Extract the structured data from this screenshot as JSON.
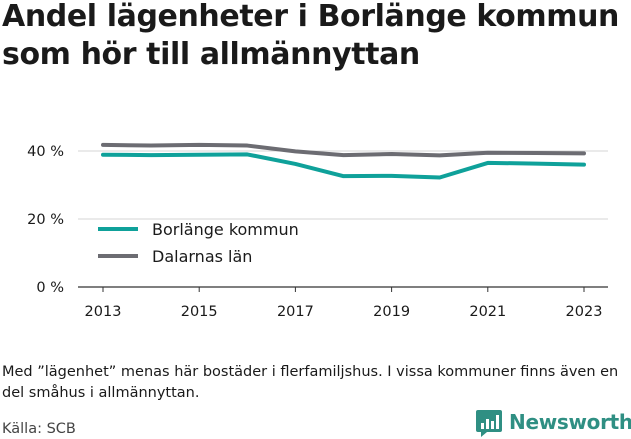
{
  "chart_data": {
    "type": "line",
    "title": "Andel lägenheter i Borlänge kommun som hör till allmännyttan",
    "x": [
      2013,
      2014,
      2015,
      2016,
      2017,
      2018,
      2019,
      2020,
      2021,
      2022,
      2023
    ],
    "x_ticks": [
      "2013",
      "2015",
      "2017",
      "2019",
      "2021",
      "2023"
    ],
    "y_ticks": [
      {
        "value": 0,
        "label": "0 %"
      },
      {
        "value": 20,
        "label": "20 %"
      },
      {
        "value": 40,
        "label": "40 %"
      }
    ],
    "ylim": [
      0,
      46
    ],
    "grid": true,
    "legend_position": "inside-bottom-left",
    "series": [
      {
        "name": "Borlänge kommun",
        "color": "#0fa19a",
        "values": [
          38.9,
          38.8,
          38.9,
          39.0,
          36.2,
          32.6,
          32.7,
          32.2,
          36.5,
          36.3,
          36.0
        ]
      },
      {
        "name": "Dalarnas län",
        "color": "#6c6c72",
        "values": [
          41.8,
          41.6,
          41.8,
          41.6,
          39.9,
          38.8,
          39.1,
          38.7,
          39.5,
          39.4,
          39.3
        ]
      }
    ]
  },
  "note": "Med ”lägenhet” menas här bostäder i flerfamiljshus. I vissa kommuner finns även en del småhus i allmännyttan.",
  "source": "Källa: SCB",
  "brand": {
    "name": "Newsworthy",
    "icon": "newsworthy-logo-icon",
    "color": "#2f8f83"
  }
}
